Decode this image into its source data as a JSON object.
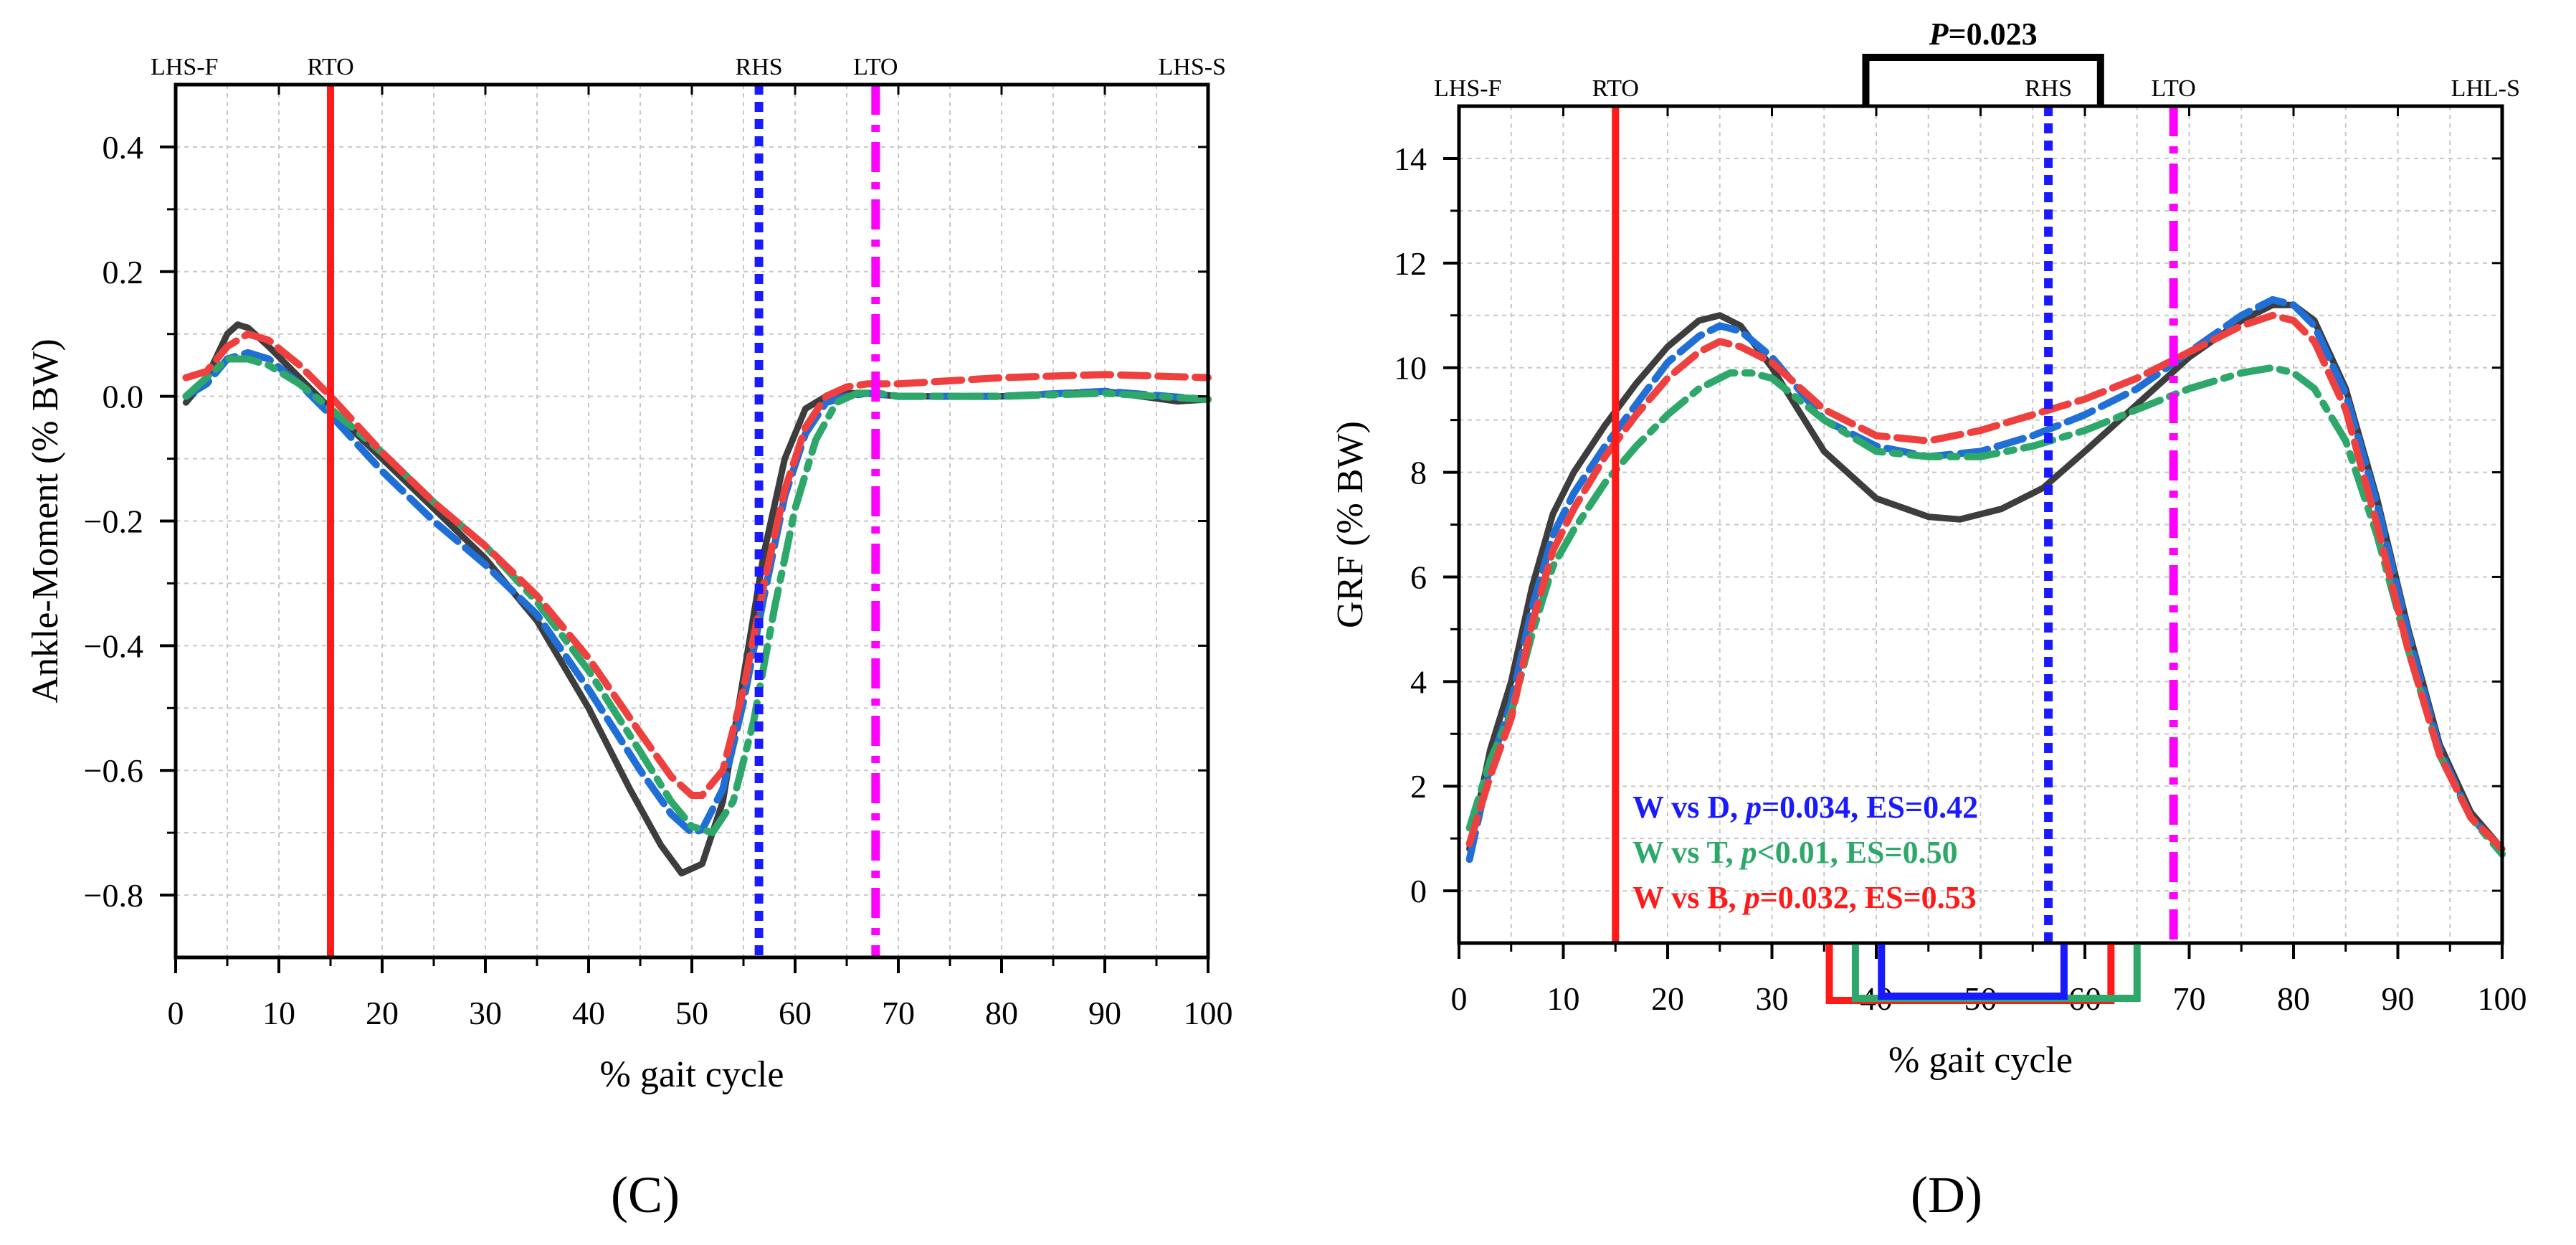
{
  "chart_data": [
    {
      "id": "C",
      "type": "line",
      "panel_label": "(C)",
      "xlabel": "% gait cycle",
      "ylabel": "Ankle-Moment (% BW)",
      "xlim": [
        0,
        100
      ],
      "ylim": [
        -0.9,
        0.5
      ],
      "xticks": [
        0,
        10,
        20,
        30,
        40,
        50,
        60,
        70,
        80,
        90,
        100
      ],
      "yticks": [
        -0.8,
        -0.6,
        -0.4,
        -0.2,
        0.0,
        0.2,
        0.4
      ],
      "ytick_labels": [
        "−0.8",
        "−0.6",
        "−0.4",
        "−0.2",
        "0.0",
        "0.2",
        "0.4"
      ],
      "grid": true,
      "events": [
        {
          "label": "LHS-F",
          "x": 0,
          "line": false
        },
        {
          "label": "RTO",
          "x": 15,
          "line": true,
          "color": "#ff1a1a",
          "style": "solid"
        },
        {
          "label": "RHS",
          "x": 56.5,
          "line": true,
          "color": "#1a1aff",
          "style": "dotted"
        },
        {
          "label": "LTO",
          "x": 67.8,
          "line": true,
          "color": "#ff00ff",
          "style": "dashdot"
        },
        {
          "label": "LHS-S",
          "x": 100,
          "line": false
        }
      ],
      "series": [
        {
          "name": "W",
          "color": "#3d3d3d",
          "style": "solid",
          "x": [
            1,
            3,
            5,
            6,
            7,
            9,
            12,
            15,
            20,
            25,
            30,
            35,
            40,
            44,
            47,
            49,
            51,
            53,
            55,
            57,
            59,
            61,
            63,
            65,
            67,
            70,
            80,
            90,
            97,
            100
          ],
          "y": [
            -0.01,
            0.03,
            0.1,
            0.115,
            0.11,
            0.08,
            0.03,
            -0.02,
            -0.1,
            -0.18,
            -0.26,
            -0.36,
            -0.5,
            -0.63,
            -0.72,
            -0.765,
            -0.75,
            -0.65,
            -0.45,
            -0.25,
            -0.1,
            -0.02,
            0.0,
            0.005,
            0.005,
            0.0,
            0.0,
            0.008,
            -0.008,
            -0.005
          ]
        },
        {
          "name": "D",
          "color": "#1f6fd6",
          "style": "dashed",
          "x": [
            1,
            3,
            5,
            7,
            9,
            12,
            15,
            20,
            25,
            30,
            35,
            40,
            45,
            48,
            50,
            51,
            53,
            55,
            57,
            59,
            61,
            63,
            65,
            67,
            70,
            80,
            90,
            100
          ],
          "y": [
            0.0,
            0.02,
            0.06,
            0.07,
            0.06,
            0.02,
            -0.03,
            -0.12,
            -0.2,
            -0.27,
            -0.35,
            -0.47,
            -0.6,
            -0.67,
            -0.7,
            -0.695,
            -0.63,
            -0.49,
            -0.32,
            -0.16,
            -0.06,
            -0.01,
            0.0,
            0.005,
            0.0,
            0.0,
            0.008,
            -0.005
          ]
        },
        {
          "name": "T",
          "color": "#2ea86a",
          "style": "dashdot",
          "x": [
            1,
            3,
            5,
            7,
            9,
            12,
            15,
            20,
            25,
            30,
            35,
            40,
            45,
            48,
            50,
            52,
            54,
            56,
            58,
            60,
            62,
            64,
            66,
            68,
            70,
            80,
            90,
            100
          ],
          "y": [
            0.0,
            0.03,
            0.06,
            0.06,
            0.05,
            0.02,
            -0.02,
            -0.09,
            -0.17,
            -0.24,
            -0.33,
            -0.44,
            -0.57,
            -0.65,
            -0.69,
            -0.7,
            -0.65,
            -0.52,
            -0.34,
            -0.18,
            -0.07,
            -0.01,
            0.005,
            0.005,
            0.0,
            0.0,
            0.005,
            -0.005
          ]
        },
        {
          "name": "B",
          "color": "#ef4040",
          "style": "dashed",
          "x": [
            1,
            3,
            5,
            7,
            9,
            12,
            15,
            20,
            25,
            30,
            35,
            40,
            45,
            48,
            50,
            51,
            53,
            55,
            57,
            59,
            61,
            63,
            65,
            67,
            70,
            80,
            90,
            100
          ],
          "y": [
            0.03,
            0.04,
            0.08,
            0.1,
            0.09,
            0.05,
            0.0,
            -0.09,
            -0.17,
            -0.24,
            -0.32,
            -0.42,
            -0.54,
            -0.61,
            -0.64,
            -0.64,
            -0.6,
            -0.47,
            -0.3,
            -0.15,
            -0.05,
            0.0,
            0.015,
            0.02,
            0.02,
            0.03,
            0.035,
            0.03
          ]
        }
      ]
    },
    {
      "id": "D",
      "type": "line",
      "panel_label": "(D)",
      "xlabel": "% gait cycle",
      "ylabel": "GRF (% BW)",
      "xlim": [
        0,
        100
      ],
      "ylim": [
        -1,
        15
      ],
      "xticks": [
        0,
        10,
        20,
        30,
        40,
        50,
        60,
        70,
        80,
        90,
        100
      ],
      "yticks": [
        0,
        2,
        4,
        6,
        8,
        10,
        12,
        14
      ],
      "ytick_labels": [
        "0",
        "2",
        "4",
        "6",
        "8",
        "10",
        "12",
        "14"
      ],
      "grid": true,
      "events": [
        {
          "label": "LHS-F",
          "x": 0,
          "line": false
        },
        {
          "label": "RTO",
          "x": 15,
          "line": true,
          "color": "#ff1a1a",
          "style": "solid"
        },
        {
          "label": "RHS",
          "x": 56.5,
          "line": true,
          "color": "#1a1aff",
          "style": "dotted"
        },
        {
          "label": "LTO",
          "x": 68.5,
          "line": true,
          "color": "#ff00ff",
          "style": "dashdot"
        },
        {
          "label": "LHL-S",
          "x": 100,
          "line": false
        }
      ],
      "significance_top": {
        "label": "P=0.023",
        "x_start": 39,
        "x_end": 61.5
      },
      "significance_bottom": [
        {
          "pair": "W vs B",
          "color": "#ff1a1a",
          "x_start": 35.5,
          "x_end": 62.5
        },
        {
          "pair": "W vs T",
          "color": "#2ea86a",
          "x_start": 38,
          "x_end": 65
        },
        {
          "pair": "W vs D",
          "color": "#1a1aff",
          "x_start": 40.5,
          "x_end": 58
        }
      ],
      "annotations": [
        {
          "color": "#1a1aff",
          "parts": [
            "W vs D, ",
            "p",
            "=0.034, ES=0.42"
          ]
        },
        {
          "color": "#2ea86a",
          "parts": [
            "W vs T, ",
            "p",
            "<0.01, ES=0.50"
          ]
        },
        {
          "color": "#ff1a1a",
          "parts": [
            "W vs B, ",
            "p",
            "=0.032, ES=0.53"
          ]
        }
      ],
      "series": [
        {
          "name": "W",
          "color": "#3d3d3d",
          "style": "solid",
          "x": [
            1,
            3,
            5,
            7,
            9,
            11,
            14,
            17,
            20,
            23,
            25,
            27,
            30,
            35,
            40,
            45,
            48,
            52,
            56,
            60,
            65,
            70,
            75,
            78,
            80,
            82,
            85,
            88,
            91,
            94,
            97,
            100
          ],
          "y": [
            0.8,
            2.7,
            4.0,
            5.8,
            7.2,
            8.0,
            8.9,
            9.7,
            10.4,
            10.9,
            11.0,
            10.8,
            10.0,
            8.4,
            7.5,
            7.15,
            7.1,
            7.3,
            7.7,
            8.4,
            9.3,
            10.2,
            10.9,
            11.2,
            11.2,
            10.9,
            9.6,
            7.5,
            5.0,
            2.8,
            1.5,
            0.8
          ]
        },
        {
          "name": "D",
          "color": "#1f6fd6",
          "style": "dashed",
          "x": [
            1,
            3,
            5,
            7,
            9,
            11,
            14,
            17,
            20,
            23,
            25,
            27,
            30,
            35,
            40,
            45,
            50,
            55,
            60,
            65,
            70,
            75,
            78,
            80,
            82,
            85,
            88,
            91,
            94,
            97,
            100
          ],
          "y": [
            0.6,
            2.4,
            3.6,
            5.4,
            6.8,
            7.6,
            8.5,
            9.3,
            10.1,
            10.6,
            10.8,
            10.7,
            10.2,
            9.0,
            8.5,
            8.3,
            8.4,
            8.7,
            9.1,
            9.6,
            10.3,
            11.0,
            11.3,
            11.2,
            10.8,
            9.5,
            7.4,
            4.9,
            2.7,
            1.4,
            0.8
          ]
        },
        {
          "name": "T",
          "color": "#2ea86a",
          "style": "dashdot",
          "x": [
            1,
            3,
            5,
            7,
            9,
            11,
            14,
            17,
            20,
            23,
            26,
            28,
            30,
            35,
            40,
            45,
            50,
            55,
            60,
            65,
            70,
            75,
            78,
            80,
            82,
            85,
            88,
            91,
            94,
            97,
            100
          ],
          "y": [
            1.2,
            2.5,
            3.4,
            4.9,
            6.2,
            6.9,
            7.8,
            8.5,
            9.1,
            9.6,
            9.9,
            9.9,
            9.8,
            9.0,
            8.4,
            8.3,
            8.3,
            8.5,
            8.8,
            9.2,
            9.6,
            9.9,
            10.0,
            9.9,
            9.6,
            8.6,
            6.8,
            4.6,
            2.6,
            1.4,
            0.7
          ]
        },
        {
          "name": "B",
          "color": "#ef4040",
          "style": "dashed",
          "x": [
            1,
            3,
            5,
            7,
            9,
            11,
            14,
            17,
            20,
            23,
            25,
            27,
            30,
            35,
            40,
            45,
            50,
            55,
            60,
            65,
            70,
            75,
            78,
            80,
            82,
            85,
            88,
            91,
            94,
            97,
            100
          ],
          "y": [
            0.9,
            2.2,
            3.3,
            5.1,
            6.5,
            7.3,
            8.3,
            9.1,
            9.8,
            10.3,
            10.5,
            10.4,
            10.1,
            9.2,
            8.7,
            8.6,
            8.8,
            9.1,
            9.4,
            9.8,
            10.3,
            10.8,
            11.0,
            10.9,
            10.5,
            9.2,
            7.0,
            4.6,
            2.6,
            1.4,
            0.8
          ]
        }
      ]
    }
  ]
}
